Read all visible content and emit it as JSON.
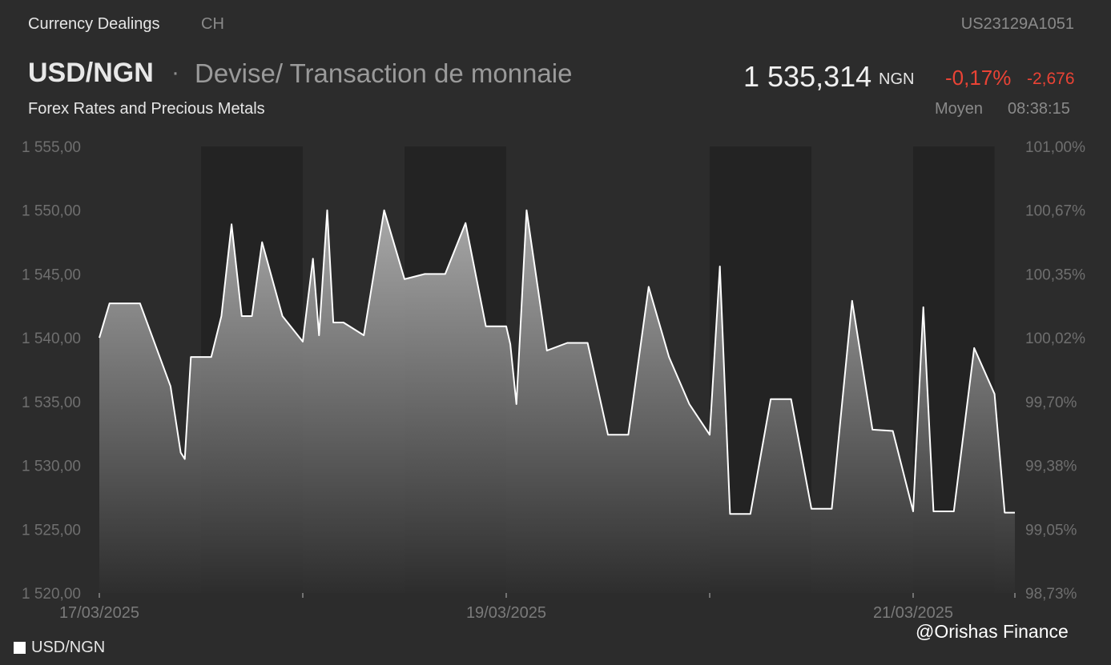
{
  "header": {
    "section": "Currency Dealings",
    "market": "CH",
    "isin": "US23129A1051",
    "pair": "USD/NGN",
    "separator": "·",
    "instrument_type": "Devise/ Transaction de monnaie",
    "subtitle": "Forex Rates and Precious Metals",
    "price": "1 535,314",
    "price_currency": "NGN",
    "change_pct": "-0,17%",
    "change_abs": "-2,676",
    "price_mode": "Moyen",
    "time": "08:38:15"
  },
  "legend": {
    "label": "USD/NGN"
  },
  "watermark": "@Orishas Finance",
  "colors": {
    "background": "#2c2c2c",
    "night_shade": "#232323",
    "line": "#ffffff",
    "negative": "#ea4335"
  },
  "chart_data": {
    "type": "area",
    "title": "USD/NGN",
    "series": [
      {
        "name": "USD/NGN",
        "x": [
          0,
          0.05,
          0.1,
          0.2,
          0.35,
          0.4,
          0.42,
          0.45,
          0.5,
          0.55,
          0.6,
          0.65,
          0.7,
          0.75,
          0.8,
          0.9,
          1.0,
          1.05,
          1.08,
          1.12,
          1.15,
          1.2,
          1.3,
          1.4,
          1.5,
          1.6,
          1.7,
          1.8,
          1.9,
          1.95,
          2.0,
          2.02,
          2.05,
          2.1,
          2.2,
          2.3,
          2.4,
          2.5,
          2.6,
          2.7,
          2.8,
          2.9,
          3.0,
          3.05,
          3.1,
          3.2,
          3.3,
          3.4,
          3.5,
          3.6,
          3.7,
          3.8,
          3.9,
          4.0,
          4.05,
          4.1,
          4.2,
          4.3,
          4.4,
          4.45,
          4.5
        ],
        "values": [
          1540.0,
          1542.7,
          1542.7,
          1542.7,
          1536.2,
          1531.0,
          1530.5,
          1538.5,
          1538.5,
          1538.5,
          1541.7,
          1548.9,
          1541.7,
          1541.7,
          1547.5,
          1541.7,
          1539.7,
          1546.2,
          1540.2,
          1550.0,
          1541.2,
          1541.2,
          1540.2,
          1550.0,
          1544.6,
          1545.0,
          1545.0,
          1549.0,
          1540.9,
          1540.9,
          1540.9,
          1539.5,
          1534.8,
          1550.0,
          1539.0,
          1539.6,
          1539.6,
          1532.4,
          1532.4,
          1544.0,
          1538.5,
          1534.8,
          1532.4,
          1545.6,
          1526.2,
          1526.2,
          1535.2,
          1535.2,
          1526.6,
          1526.6,
          1542.9,
          1532.8,
          1532.7,
          1526.4,
          1542.4,
          1526.4,
          1526.4,
          1539.2,
          1535.6,
          1526.3,
          1526.3
        ]
      }
    ],
    "x_tick_labels": [
      "17/03/2025",
      "19/03/2025",
      "21/03/2025"
    ],
    "y_left_ticks": [
      "1 555,00",
      "1 550,00",
      "1 545,00",
      "1 540,00",
      "1 535,00",
      "1 530,00",
      "1 525,00",
      "1 520,00"
    ],
    "y_right_ticks": [
      "101,00%",
      "100,67%",
      "100,35%",
      "100,02%",
      "99,70%",
      "99,38%",
      "99,05%",
      "98,73%"
    ],
    "ylim": [
      1520,
      1555
    ],
    "grid": false,
    "legend_position": "bottom-left"
  }
}
